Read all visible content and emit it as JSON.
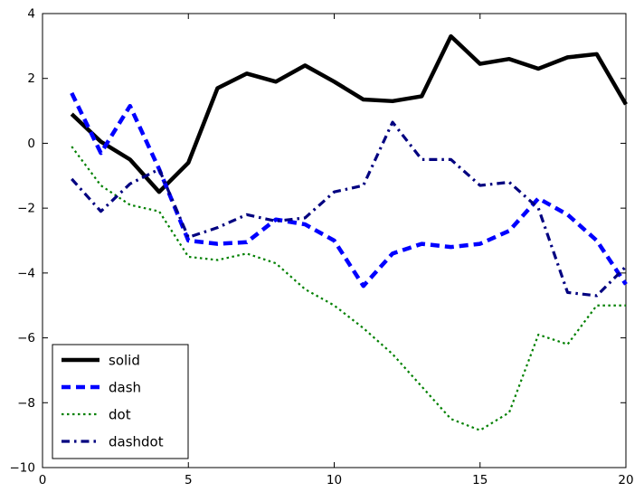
{
  "figure": {
    "background": "#ffffff"
  },
  "chart_data": {
    "type": "line",
    "title": "",
    "xlabel": "",
    "ylabel": "",
    "xlim": [
      0,
      20
    ],
    "ylim": [
      -10,
      4
    ],
    "xticks": [
      0,
      5,
      10,
      15,
      20
    ],
    "yticks": [
      4,
      2,
      0,
      -2,
      -4,
      -6,
      -8,
      -10
    ],
    "grid": false,
    "legend_position": "lower left",
    "x": [
      1,
      2,
      3,
      4,
      5,
      6,
      7,
      8,
      9,
      10,
      11,
      12,
      13,
      14,
      15,
      16,
      17,
      18,
      19,
      20
    ],
    "series": [
      {
        "name": "solid",
        "style": "solid",
        "color": "#000000",
        "linewidth": 4.5,
        "values": [
          0.9,
          0.05,
          -0.5,
          -1.5,
          -0.6,
          1.7,
          2.15,
          1.9,
          2.4,
          1.9,
          1.35,
          1.3,
          1.45,
          3.3,
          2.45,
          2.6,
          2.3,
          2.65,
          2.75,
          1.2
        ]
      },
      {
        "name": "dash",
        "style": "dash",
        "color": "#0000ff",
        "linewidth": 4.5,
        "values": [
          1.55,
          -0.3,
          1.15,
          -0.8,
          -3.0,
          -3.1,
          -3.05,
          -2.35,
          -2.5,
          -3.0,
          -4.4,
          -3.4,
          -3.1,
          -3.2,
          -3.1,
          -2.7,
          -1.7,
          -2.2,
          -3.0,
          -4.35
        ]
      },
      {
        "name": "dot",
        "style": "dot",
        "color": "#008000",
        "linewidth": 2.2,
        "values": [
          -0.1,
          -1.3,
          -1.9,
          -2.1,
          -3.5,
          -3.6,
          -3.4,
          -3.7,
          -4.5,
          -5.0,
          -5.7,
          -6.5,
          -7.5,
          -8.5,
          -8.85,
          -8.3,
          -5.9,
          -6.2,
          -5.0,
          -5.0
        ]
      },
      {
        "name": "dashdot",
        "style": "dashdot",
        "color": "#000080",
        "linewidth": 3.2,
        "values": [
          -1.1,
          -2.1,
          -1.25,
          -0.8,
          -2.9,
          -2.6,
          -2.2,
          -2.4,
          -2.3,
          -1.5,
          -1.3,
          0.65,
          -0.5,
          -0.5,
          -1.3,
          -1.2,
          -2.0,
          -4.6,
          -4.7,
          -3.8
        ]
      }
    ],
    "legend_labels": [
      "solid",
      "dash",
      "dot",
      "dashdot"
    ]
  }
}
